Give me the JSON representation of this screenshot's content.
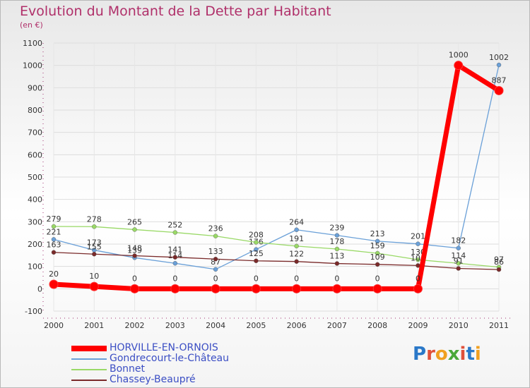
{
  "title": "Evolution du Montant de la Dette par Habitant",
  "subtitle": "(en €)",
  "chart_data": {
    "type": "line",
    "title": "Evolution du Montant de la Dette par Habitant",
    "ylabel": "(en €)",
    "x": [
      "2000",
      "2001",
      "2002",
      "2003",
      "2004",
      "2005",
      "2006",
      "2007",
      "2008",
      "2009",
      "2010",
      "2011"
    ],
    "ylim": [
      -100,
      1100
    ],
    "yticks": [
      -100,
      0,
      100,
      200,
      300,
      400,
      500,
      600,
      700,
      800,
      900,
      1000,
      1100
    ],
    "grid": true,
    "series": [
      {
        "name": "HORVILLE-EN-ORNOIS",
        "color": "#ff0000",
        "values": [
          20,
          10,
          0,
          0,
          0,
          0,
          0,
          0,
          0,
          0,
          1000,
          887
        ]
      },
      {
        "name": "Gondrecourt-le-Château",
        "color": "#6aa0d8",
        "values": [
          221,
          173,
          139,
          114,
          87,
          176,
          264,
          239,
          213,
          201,
          182,
          1002
        ]
      },
      {
        "name": "Bonnet",
        "color": "#99d966",
        "values": [
          279,
          278,
          265,
          252,
          236,
          208,
          191,
          178,
          159,
          130,
          114,
          97
        ]
      },
      {
        "name": "Chassey-Beaupré",
        "color": "#7a2a2a",
        "values": [
          163,
          155,
          148,
          141,
          133,
          125,
          122,
          113,
          109,
          104,
          91,
          86
        ]
      }
    ]
  },
  "legend": [
    {
      "label": "HORVILLE-EN-ORNOIS",
      "color": "#ff0000"
    },
    {
      "label": "Gondrecourt-le-Château",
      "color": "#6aa0d8"
    },
    {
      "label": "Bonnet",
      "color": "#99d966"
    },
    {
      "label": "Chassey-Beaupré",
      "color": "#7a2a2a"
    }
  ],
  "logo": {
    "text": "Proxiti"
  }
}
